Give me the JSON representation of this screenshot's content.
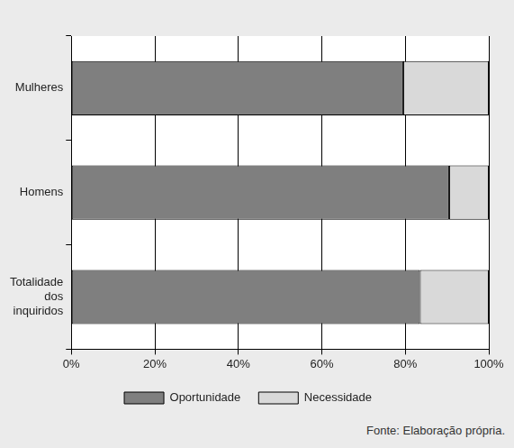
{
  "chart_data": {
    "type": "bar",
    "orientation": "horizontal",
    "stacked": true,
    "categories": [
      "Mulheres",
      "Homens",
      "Totalidade dos inquiridos"
    ],
    "series": [
      {
        "name": "Oportunidade",
        "color": "#7f7f7f",
        "values": [
          79.5,
          90.5,
          83.5
        ]
      },
      {
        "name": "Necessidade",
        "color": "#d9d9d9",
        "values": [
          20.5,
          9.5,
          16.5
        ]
      }
    ],
    "xlim": [
      0,
      100
    ],
    "xticks": [
      {
        "value": 0,
        "label": "0%"
      },
      {
        "value": 20,
        "label": "20%"
      },
      {
        "value": 40,
        "label": "40%"
      },
      {
        "value": 60,
        "label": "60%"
      },
      {
        "value": 80,
        "label": "80%"
      },
      {
        "value": 100,
        "label": "100%"
      }
    ],
    "grid": true,
    "legend": "bottom",
    "annotations": [
      "Fonte: Elaboração própria."
    ]
  }
}
